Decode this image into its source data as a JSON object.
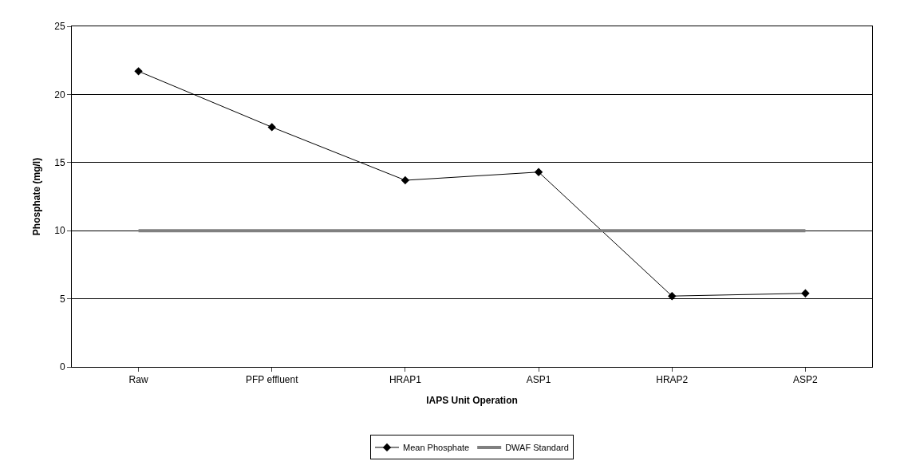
{
  "chart_data": {
    "type": "line",
    "xlabel": "IAPS Unit Operation",
    "ylabel": "Phosphate (mg/l)",
    "categories": [
      "Raw",
      "PFP effluent",
      "HRAP1",
      "ASP1",
      "HRAP2",
      "ASP2"
    ],
    "series": [
      {
        "name": "Mean Phosphate",
        "color": "#000000",
        "values": [
          21.7,
          17.6,
          13.7,
          14.3,
          5.2,
          5.4
        ],
        "marker": "diamond"
      },
      {
        "name": "DWAF Standard",
        "color": "#808080",
        "values": [
          10,
          10,
          10,
          10,
          10,
          10
        ],
        "marker": "none"
      }
    ],
    "ylim": [
      0,
      25
    ],
    "yticks": [
      0,
      5,
      10,
      15,
      20,
      25
    ],
    "grid": "y",
    "legend": "bottom"
  }
}
